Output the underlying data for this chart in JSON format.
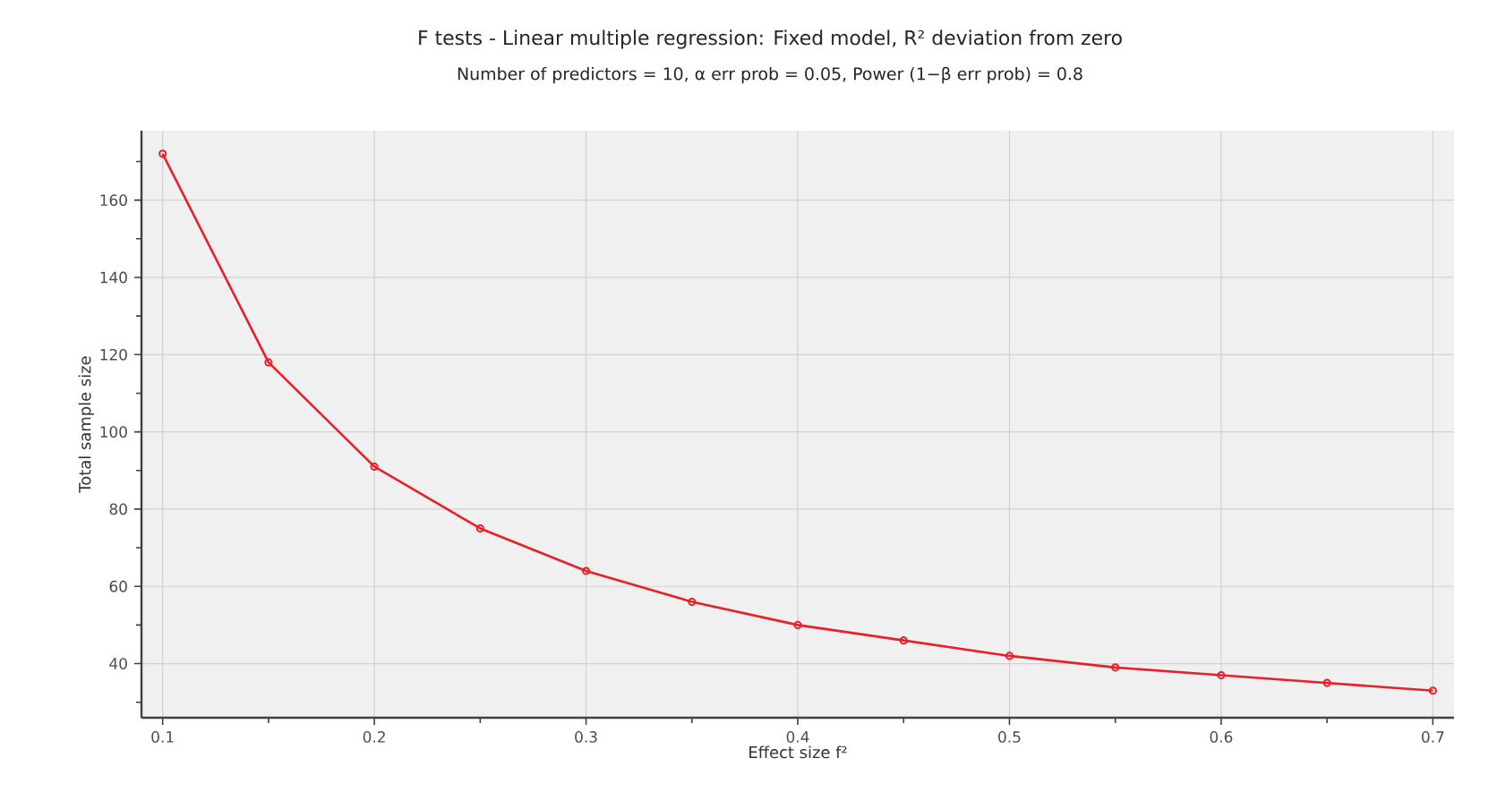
{
  "chart_data": {
    "type": "line",
    "title": "F tests - Linear multiple regression: Fixed model, R² deviation from zero",
    "subtitle": "Number of predictors = 10, α err prob = 0.05, Power (1−β err prob) = 0.8",
    "xlabel": "Effect size f²",
    "ylabel": "Total sample size",
    "x": [
      0.1,
      0.15,
      0.2,
      0.25,
      0.3,
      0.35,
      0.4,
      0.45,
      0.5,
      0.55,
      0.6,
      0.65,
      0.7
    ],
    "series": [
      {
        "color": "#e8202a",
        "values": [
          172,
          118,
          91,
          75,
          64,
          56,
          50,
          46,
          42,
          39,
          37,
          35,
          33
        ]
      }
    ],
    "xlim": [
      0.09,
      0.71
    ],
    "ylim": [
      26,
      178
    ],
    "xticks": [
      0.1,
      {
        "value": 0.15,
        "label": null
      },
      0.2,
      {
        "value": 0.25,
        "label": null
      },
      0.3,
      {
        "value": 0.35,
        "label": null
      },
      0.4,
      {
        "value": 0.45,
        "label": null
      },
      0.5,
      {
        "value": 0.55,
        "label": null
      },
      0.6,
      {
        "value": 0.65,
        "label": null
      },
      0.7
    ],
    "yticks": [
      {
        "value": 30,
        "label": null
      },
      40,
      {
        "value": 50,
        "label": null
      },
      60,
      {
        "value": 70,
        "label": null
      },
      80,
      {
        "value": 90,
        "label": null
      },
      100,
      {
        "value": 110,
        "label": null
      },
      120,
      {
        "value": 130,
        "label": null
      },
      140,
      {
        "value": 150,
        "label": null
      },
      160,
      {
        "value": 170,
        "label": null
      }
    ],
    "grid": true,
    "marker": "circle",
    "line_style": "solid"
  }
}
